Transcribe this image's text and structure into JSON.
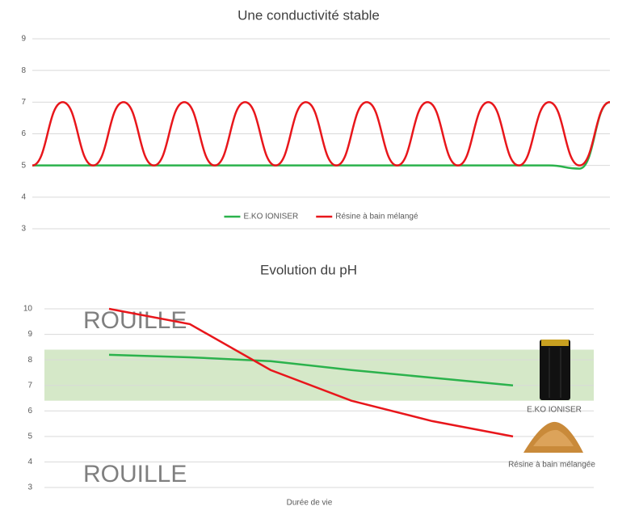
{
  "chart_data": [
    {
      "type": "line",
      "title": "Une conductivité stable",
      "x": [
        0,
        1,
        2,
        3,
        4,
        5,
        6,
        7,
        8,
        9,
        10,
        11,
        12,
        13,
        14,
        15,
        16,
        17,
        18,
        19
      ],
      "xlim": [
        0,
        19
      ],
      "ylim": [
        3,
        9
      ],
      "yticks": [
        3,
        4,
        5,
        6,
        7,
        8,
        9
      ],
      "grid": true,
      "legend": "bottom",
      "series": [
        {
          "name": "E.KO IONISER",
          "color": "#2bb24c",
          "values": [
            5,
            5,
            5,
            5,
            5,
            5,
            5,
            5,
            5,
            5,
            5,
            5,
            5,
            5,
            5,
            5,
            5,
            5,
            4.9,
            7
          ]
        },
        {
          "name": "Résine à bain mélangé",
          "color": "#e8161b",
          "values": [
            5,
            7,
            5,
            7,
            5,
            7,
            5,
            7,
            5,
            7,
            5,
            7,
            5,
            7,
            5,
            7,
            5,
            7,
            5,
            7
          ]
        }
      ]
    },
    {
      "type": "line",
      "title": "Evolution du pH",
      "x_label": "Durée de vie",
      "x": [
        0,
        1,
        2,
        3,
        4,
        5
      ],
      "xlim": [
        -0.8,
        6
      ],
      "ylim": [
        3,
        10
      ],
      "yticks": [
        3,
        4,
        5,
        6,
        7,
        8,
        9,
        10
      ],
      "grid": true,
      "band": {
        "ymin": 6.4,
        "ymax": 8.4,
        "color": "#d5e8c8"
      },
      "annotations": [
        "ROUILLE",
        "ROUILLE"
      ],
      "series": [
        {
          "name": "E.KO IONISER",
          "color": "#2bb24c",
          "values": [
            8.2,
            8.1,
            7.95,
            7.6,
            7.3,
            7.0
          ]
        },
        {
          "name": "Résine à bain mélangée",
          "color": "#e8161b",
          "values": [
            10,
            9.4,
            7.6,
            6.4,
            5.6,
            5.0
          ]
        }
      ]
    }
  ]
}
